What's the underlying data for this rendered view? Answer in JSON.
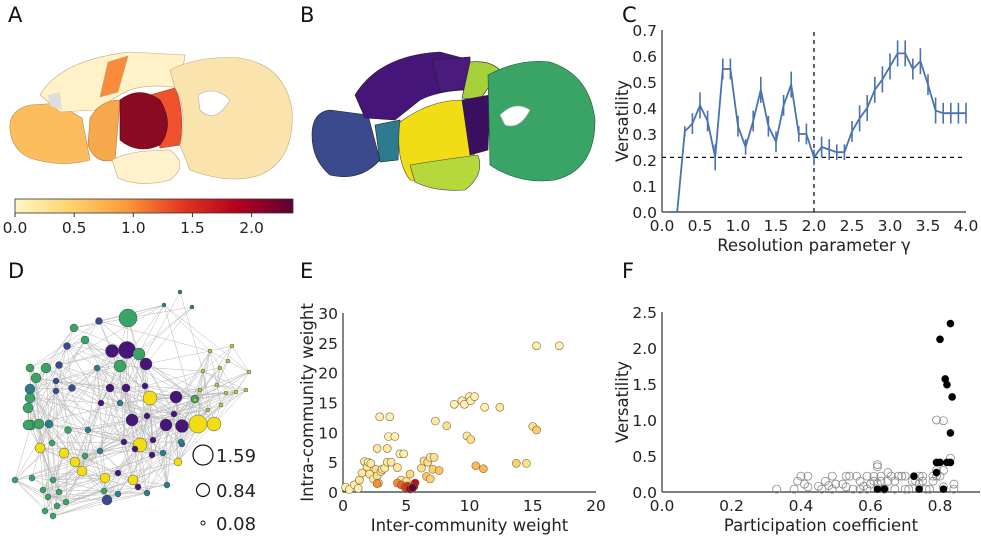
{
  "panels": {
    "A": "A",
    "B": "B",
    "C": "C",
    "D": "D",
    "E": "E",
    "F": "F"
  },
  "colorbar": {
    "ticks": [
      "0.0",
      "0.5",
      "1.0",
      "1.5",
      "2.0"
    ],
    "range": [
      0,
      2.35
    ],
    "colors": [
      "#fff7c4",
      "#fed26f",
      "#fb9a3a",
      "#e2381f",
      "#b3001f",
      "#5e0035"
    ]
  },
  "community_colors": [
    "#3b4a8c",
    "#2c7b8e",
    "#46157a",
    "#f0dd16",
    "#a6d13a",
    "#3aa366"
  ],
  "network_legend": {
    "values": [
      "1.59",
      "0.84",
      "0.08"
    ]
  },
  "chart_data": [
    {
      "panel": "C",
      "type": "line",
      "xlabel": "Resolution parameter γ",
      "ylabel": "Versatility",
      "xlim": [
        0,
        4
      ],
      "ylim": [
        0,
        0.7
      ],
      "xticks": [
        "0.0",
        "0.5",
        "1.0",
        "1.5",
        "2.0",
        "2.5",
        "3.0",
        "3.5",
        "4.0"
      ],
      "yticks": [
        "0.0",
        "0.1",
        "0.2",
        "0.3",
        "0.4",
        "0.5",
        "0.6",
        "0.7"
      ],
      "color": "#4a72b0",
      "x": [
        0.1,
        0.2,
        0.3,
        0.4,
        0.5,
        0.6,
        0.7,
        0.8,
        0.9,
        1.0,
        1.1,
        1.2,
        1.3,
        1.4,
        1.5,
        1.6,
        1.7,
        1.8,
        1.9,
        2.0,
        2.1,
        2.2,
        2.3,
        2.4,
        2.5,
        2.6,
        2.7,
        2.8,
        2.9,
        3.0,
        3.1,
        3.2,
        3.3,
        3.4,
        3.5,
        3.6,
        3.7,
        3.8,
        3.9,
        4.0
      ],
      "y": [
        0,
        0,
        0.31,
        0.34,
        0.41,
        0.35,
        0.21,
        0.55,
        0.55,
        0.33,
        0.25,
        0.35,
        0.47,
        0.33,
        0.27,
        0.41,
        0.49,
        0.3,
        0.3,
        0.21,
        0.25,
        0.24,
        0.23,
        0.23,
        0.31,
        0.36,
        0.4,
        0.47,
        0.51,
        0.56,
        0.61,
        0.61,
        0.55,
        0.58,
        0.49,
        0.39,
        0.38,
        0.38,
        0.38,
        0.38
      ],
      "err": [
        0,
        0,
        0.02,
        0.04,
        0.05,
        0.04,
        0.05,
        0.04,
        0.04,
        0.04,
        0.03,
        0.04,
        0.05,
        0.04,
        0.04,
        0.04,
        0.05,
        0.03,
        0.04,
        0.03,
        0.04,
        0.04,
        0.03,
        0.03,
        0.04,
        0.05,
        0.05,
        0.05,
        0.05,
        0.05,
        0.05,
        0.05,
        0.04,
        0.05,
        0.04,
        0.05,
        0.04,
        0.04,
        0.04,
        0.04
      ],
      "hline": 0.21,
      "vline": 2.0
    },
    {
      "panel": "E",
      "type": "scatter",
      "xlabel": "Inter-community weight",
      "ylabel": "Intra-community weight",
      "xlim": [
        0,
        20
      ],
      "ylim": [
        0,
        30
      ],
      "xticks": [
        "0",
        "5",
        "10",
        "15",
        "20"
      ],
      "yticks": [
        "0",
        "5",
        "10",
        "15",
        "20",
        "25",
        "30"
      ],
      "points": [
        [
          0.2,
          0.8,
          0.1
        ],
        [
          0.5,
          0.4,
          0.1
        ],
        [
          0.9,
          1.2,
          0.1
        ],
        [
          1.2,
          0.6,
          0.1
        ],
        [
          1.3,
          2.0,
          0.2
        ],
        [
          1.5,
          3.2,
          0.2
        ],
        [
          1.7,
          5.1,
          0.2
        ],
        [
          1.9,
          4.2,
          0.2
        ],
        [
          2.0,
          5.0,
          0.1
        ],
        [
          2.1,
          3.0,
          0.2
        ],
        [
          2.2,
          4.8,
          0.2
        ],
        [
          2.4,
          2.2,
          0.2
        ],
        [
          2.6,
          3.8,
          0.3
        ],
        [
          2.7,
          2.7,
          0.3
        ],
        [
          2.7,
          7.3,
          0.2
        ],
        [
          2.8,
          1.5,
          0.3
        ],
        [
          2.9,
          12.6,
          0.1
        ],
        [
          3.0,
          3.4,
          0.3
        ],
        [
          3.1,
          3.8,
          0.2
        ],
        [
          3.3,
          4.0,
          0.2
        ],
        [
          3.5,
          5.0,
          0.2
        ],
        [
          3.5,
          7.3,
          0.2
        ],
        [
          3.6,
          9.3,
          0.1
        ],
        [
          3.7,
          12.6,
          0.1
        ],
        [
          3.8,
          5.0,
          0.2
        ],
        [
          4.1,
          9.3,
          0.1
        ],
        [
          4.3,
          4.1,
          0.2
        ],
        [
          4.5,
          6.4,
          0.1
        ],
        [
          4.8,
          6.4,
          0.1
        ],
        [
          4.6,
          2.0,
          0.2
        ],
        [
          5.0,
          1.8,
          0.3
        ],
        [
          5.3,
          3.0,
          0.4
        ],
        [
          6.2,
          4.0,
          0.3
        ],
        [
          6.4,
          5.2,
          0.3
        ],
        [
          6.6,
          2.6,
          0.6
        ],
        [
          6.7,
          5.0,
          0.3
        ],
        [
          6.9,
          2.2,
          0.5
        ],
        [
          6.9,
          5.8,
          0.2
        ],
        [
          7.1,
          3.8,
          0.5
        ],
        [
          7.2,
          5.8,
          0.3
        ],
        [
          7.3,
          11.9,
          0.2
        ],
        [
          7.6,
          3.6,
          0.6
        ],
        [
          8.2,
          11.1,
          0.3
        ],
        [
          8.8,
          14.7,
          0.1
        ],
        [
          9.4,
          15.3,
          0.1
        ],
        [
          9.6,
          14.7,
          0.1
        ],
        [
          9.8,
          9.4,
          0.2
        ],
        [
          10.0,
          16.0,
          0.1
        ],
        [
          10.1,
          15.3,
          0.1
        ],
        [
          10.1,
          8.8,
          0.3
        ],
        [
          10.4,
          16.0,
          0.1
        ],
        [
          10.5,
          4.4,
          0.7
        ],
        [
          11.2,
          14.2,
          0.1
        ],
        [
          11.1,
          3.9,
          0.7
        ],
        [
          12.4,
          14.2,
          0.2
        ],
        [
          13.7,
          4.8,
          0.5
        ],
        [
          14.5,
          4.8,
          0.3
        ],
        [
          15.0,
          11.0,
          0.3
        ],
        [
          15.3,
          10.4,
          0.5
        ],
        [
          15.3,
          24.5,
          0.1
        ],
        [
          17.1,
          24.5,
          0.1
        ],
        [
          2.7,
          1.4,
          1.0
        ],
        [
          4.3,
          1.5,
          1.0
        ],
        [
          4.6,
          1.2,
          1.2
        ],
        [
          4.9,
          0.8,
          1.4
        ],
        [
          5.1,
          1.0,
          1.5
        ],
        [
          5.7,
          1.5,
          1.8
        ],
        [
          5.6,
          0.9,
          2.1
        ],
        [
          5.3,
          0.5,
          2.0
        ],
        [
          5.5,
          0.7,
          2.3
        ]
      ]
    },
    {
      "panel": "F",
      "type": "scatter",
      "xlabel": "Participation coefficient",
      "ylabel": "Versatility",
      "xlim": [
        0,
        0.9
      ],
      "ylim": [
        0,
        2.5
      ],
      "xticks": [
        "0.0",
        "0.2",
        "0.4",
        "0.6",
        "0.8"
      ],
      "yticks": [
        "0.0",
        "0.5",
        "1.0",
        "1.5",
        "2.0",
        "2.5"
      ],
      "filled": [
        [
          0.83,
          2.34
        ],
        [
          0.8,
          2.12
        ],
        [
          0.815,
          1.57
        ],
        [
          0.82,
          1.49
        ],
        [
          0.835,
          1.32
        ],
        [
          0.83,
          0.82
        ],
        [
          0.79,
          0.41
        ],
        [
          0.8,
          0.41
        ],
        [
          0.82,
          0.41
        ],
        [
          0.83,
          0.41
        ],
        [
          0.79,
          0.27
        ],
        [
          0.725,
          0.22
        ],
        [
          0.62,
          0.04
        ],
        [
          0.64,
          0.04
        ],
        [
          0.74,
          0.04
        ],
        [
          0.81,
          0.04
        ]
      ],
      "hollow": [
        [
          0.33,
          0.04
        ],
        [
          0.38,
          0.04
        ],
        [
          0.39,
          0.15
        ],
        [
          0.4,
          0.22
        ],
        [
          0.41,
          0.11
        ],
        [
          0.42,
          0.22
        ],
        [
          0.42,
          0.07
        ],
        [
          0.45,
          0.08
        ],
        [
          0.46,
          0.04
        ],
        [
          0.47,
          0.15
        ],
        [
          0.48,
          0.09
        ],
        [
          0.49,
          0.22
        ],
        [
          0.49,
          0.04
        ],
        [
          0.5,
          0.11
        ],
        [
          0.52,
          0.11
        ],
        [
          0.53,
          0.07
        ],
        [
          0.53,
          0.22
        ],
        [
          0.54,
          0.22
        ],
        [
          0.55,
          0.04
        ],
        [
          0.56,
          0.22
        ],
        [
          0.57,
          0.04
        ],
        [
          0.57,
          0.15
        ],
        [
          0.58,
          0.08
        ],
        [
          0.59,
          0.22
        ],
        [
          0.59,
          0.04
        ],
        [
          0.6,
          0.11
        ],
        [
          0.61,
          0.15
        ],
        [
          0.61,
          0.22
        ],
        [
          0.62,
          0.11
        ],
        [
          0.62,
          0.35
        ],
        [
          0.62,
          0.38
        ],
        [
          0.63,
          0.15
        ],
        [
          0.63,
          0.22
        ],
        [
          0.64,
          0.04
        ],
        [
          0.65,
          0.15
        ],
        [
          0.65,
          0.27
        ],
        [
          0.66,
          0.22
        ],
        [
          0.67,
          0.04
        ],
        [
          0.67,
          0.15
        ],
        [
          0.68,
          0.22
        ],
        [
          0.69,
          0.22
        ],
        [
          0.7,
          0.22
        ],
        [
          0.7,
          0.04
        ],
        [
          0.71,
          0.04
        ],
        [
          0.72,
          0.15
        ],
        [
          0.73,
          0.15
        ],
        [
          0.74,
          0.22
        ],
        [
          0.74,
          0.11
        ],
        [
          0.75,
          0.15
        ],
        [
          0.75,
          0.22
        ],
        [
          0.76,
          0.04
        ],
        [
          0.77,
          0.04
        ],
        [
          0.78,
          0.15
        ],
        [
          0.78,
          0.22
        ],
        [
          0.79,
          0.3
        ],
        [
          0.79,
          0.22
        ],
        [
          0.8,
          0.22
        ],
        [
          0.81,
          0.3
        ],
        [
          0.81,
          0.07
        ],
        [
          0.79,
          1.0
        ],
        [
          0.81,
          0.99
        ],
        [
          0.83,
          0.47
        ],
        [
          0.84,
          0.11
        ],
        [
          0.84,
          0.04
        ]
      ]
    }
  ]
}
